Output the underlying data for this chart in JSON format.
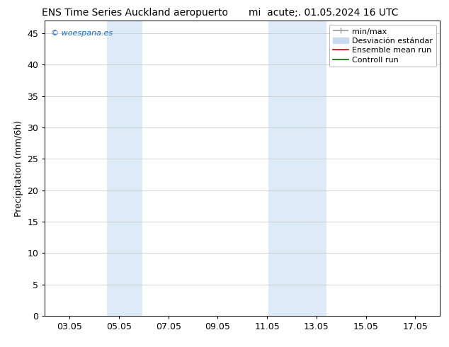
{
  "title_left": "ENS Time Series Auckland aeropuerto",
  "title_right": "mi  acute;. 01.05.2024 16 UTC",
  "ylabel": "Precipitation (mm/6h)",
  "watermark": "© woespana.es",
  "ylim": [
    0,
    47
  ],
  "yticks": [
    0,
    5,
    10,
    15,
    20,
    25,
    30,
    35,
    40,
    45
  ],
  "xtick_labels": [
    "03.05",
    "05.05",
    "07.05",
    "09.05",
    "11.05",
    "13.05",
    "15.05",
    "17.05"
  ],
  "xtick_positions": [
    3,
    5,
    7,
    9,
    11,
    13,
    15,
    17
  ],
  "xlim": [
    2,
    18
  ],
  "shaded_bands": [
    {
      "x_start": 4.5,
      "x_end": 5.95,
      "color": "#ddeaf7"
    },
    {
      "x_start": 11.05,
      "x_end": 12.05,
      "color": "#ddeaf7"
    },
    {
      "x_start": 12.05,
      "x_end": 13.4,
      "color": "#ddeaf7"
    }
  ],
  "legend_min_max_color": "#999999",
  "legend_band_color": "#c8daf0",
  "legend_ensemble_color": "#cc0000",
  "legend_control_color": "#006600",
  "background_color": "#ffffff",
  "plot_bg_color": "#ffffff",
  "border_color": "#000000",
  "watermark_color": "#1a6abf",
  "grid_color": "#cccccc",
  "tick_font_size": 9,
  "ylabel_font_size": 9,
  "title_font_size": 10,
  "legend_font_size": 8,
  "watermark_font_size": 8
}
